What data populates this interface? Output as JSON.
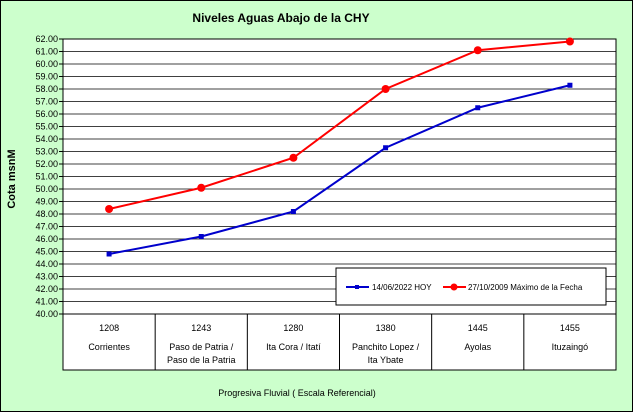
{
  "chart_data": {
    "type": "line",
    "title": "Niveles Aguas Abajo de la CHY",
    "ylabel": "Cota msnM",
    "xlabel": "Progresiva Fluvial ( Escala Referencial)",
    "ylim": [
      40.0,
      62.0
    ],
    "y_tick_step": 1.0,
    "grid": true,
    "legend_position": "bottom-right",
    "categories": [
      {
        "km": "1208",
        "name_line1": "Corrientes",
        "name_line2": ""
      },
      {
        "km": "1243",
        "name_line1": "Paso de Patria /",
        "name_line2": "Paso de la Patria"
      },
      {
        "km": "1280",
        "name_line1": "Ita Cora / Itatí",
        "name_line2": ""
      },
      {
        "km": "1380",
        "name_line1": "Panchito Lopez /",
        "name_line2": "Ita Ybate"
      },
      {
        "km": "1445",
        "name_line1": "Ayolas",
        "name_line2": ""
      },
      {
        "km": "1455",
        "name_line1": "Ituzaingó",
        "name_line2": ""
      }
    ],
    "series": [
      {
        "name": "14/06/2022  HOY",
        "color": "#0000cc",
        "marker": "square",
        "values": [
          44.8,
          46.2,
          48.2,
          53.3,
          56.5,
          58.3
        ]
      },
      {
        "name": "27/10/2009  Máximo de la Fecha",
        "color": "#ff0000",
        "marker": "circle",
        "values": [
          48.4,
          50.1,
          52.5,
          58.0,
          61.1,
          61.8
        ]
      }
    ]
  }
}
